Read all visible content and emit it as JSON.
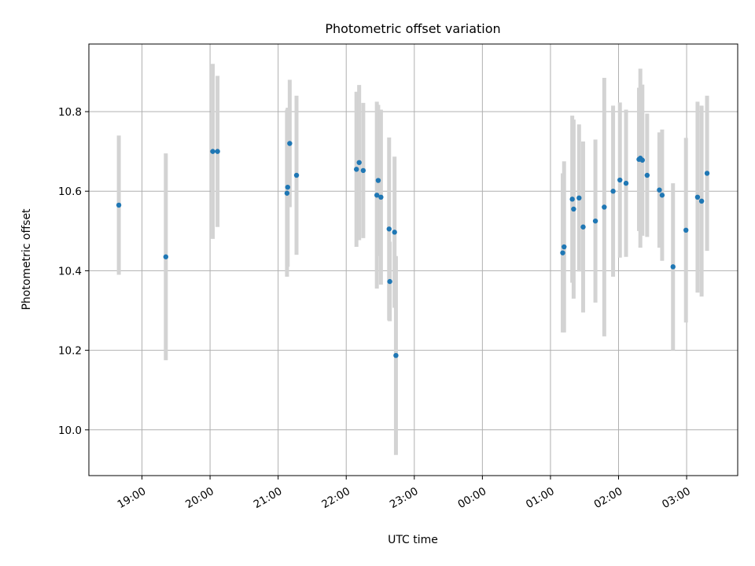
{
  "chart_data": {
    "type": "scatter",
    "title": "Photometric offset variation",
    "xlabel": "UTC time",
    "ylabel": "Photometric offset",
    "x_ticks": [
      "19:00",
      "20:00",
      "21:00",
      "22:00",
      "23:00",
      "00:00",
      "01:00",
      "02:00",
      "03:00"
    ],
    "x_tick_hours": [
      19,
      20,
      21,
      22,
      23,
      24,
      25,
      26,
      27
    ],
    "xlim": [
      18.22,
      27.75
    ],
    "y_ticks": [
      "10.0",
      "10.2",
      "10.4",
      "10.6",
      "10.8"
    ],
    "y_tick_values": [
      10.0,
      10.2,
      10.4,
      10.6,
      10.8
    ],
    "ylim": [
      9.885,
      10.97
    ],
    "grid": true,
    "colors": {
      "marker": "#1f77b4",
      "errorbar": "#d3d3d3",
      "grid": "#b0b0b0"
    },
    "points": [
      {
        "t": 18.66,
        "y": 10.565,
        "err": 0.175
      },
      {
        "t": 19.35,
        "y": 10.435,
        "err": 0.26
      },
      {
        "t": 20.04,
        "y": 10.7,
        "err": 0.22
      },
      {
        "t": 20.11,
        "y": 10.7,
        "err": 0.19
      },
      {
        "t": 21.13,
        "y": 10.595,
        "err": 0.21
      },
      {
        "t": 21.14,
        "y": 10.61,
        "err": 0.2
      },
      {
        "t": 21.17,
        "y": 10.72,
        "err": 0.16
      },
      {
        "t": 21.27,
        "y": 10.64,
        "err": 0.2
      },
      {
        "t": 22.15,
        "y": 10.655,
        "err": 0.195
      },
      {
        "t": 22.19,
        "y": 10.672,
        "err": 0.195
      },
      {
        "t": 22.25,
        "y": 10.652,
        "err": 0.17
      },
      {
        "t": 22.45,
        "y": 10.59,
        "err": 0.235
      },
      {
        "t": 22.47,
        "y": 10.627,
        "err": 0.19
      },
      {
        "t": 22.51,
        "y": 10.585,
        "err": 0.22
      },
      {
        "t": 22.63,
        "y": 10.505,
        "err": 0.23
      },
      {
        "t": 22.64,
        "y": 10.373,
        "err": 0.1
      },
      {
        "t": 22.71,
        "y": 10.497,
        "err": 0.19
      },
      {
        "t": 22.73,
        "y": 10.187,
        "err": 0.25
      },
      {
        "t": 25.18,
        "y": 10.445,
        "err": 0.2
      },
      {
        "t": 25.2,
        "y": 10.46,
        "err": 0.215
      },
      {
        "t": 25.32,
        "y": 10.58,
        "err": 0.21
      },
      {
        "t": 25.34,
        "y": 10.555,
        "err": 0.225
      },
      {
        "t": 25.42,
        "y": 10.583,
        "err": 0.185
      },
      {
        "t": 25.48,
        "y": 10.51,
        "err": 0.215
      },
      {
        "t": 25.66,
        "y": 10.525,
        "err": 0.205
      },
      {
        "t": 25.79,
        "y": 10.56,
        "err": 0.325
      },
      {
        "t": 25.92,
        "y": 10.6,
        "err": 0.215
      },
      {
        "t": 26.02,
        "y": 10.628,
        "err": 0.195
      },
      {
        "t": 26.11,
        "y": 10.62,
        "err": 0.185
      },
      {
        "t": 26.3,
        "y": 10.68,
        "err": 0.18
      },
      {
        "t": 26.32,
        "y": 10.683,
        "err": 0.225
      },
      {
        "t": 26.35,
        "y": 10.678,
        "err": 0.19
      },
      {
        "t": 26.42,
        "y": 10.64,
        "err": 0.155
      },
      {
        "t": 26.6,
        "y": 10.603,
        "err": 0.145
      },
      {
        "t": 26.64,
        "y": 10.59,
        "err": 0.165
      },
      {
        "t": 26.8,
        "y": 10.41,
        "err": 0.21
      },
      {
        "t": 26.99,
        "y": 10.502,
        "err": 0.232
      },
      {
        "t": 27.16,
        "y": 10.585,
        "err": 0.24
      },
      {
        "t": 27.22,
        "y": 10.575,
        "err": 0.24
      },
      {
        "t": 27.3,
        "y": 10.645,
        "err": 0.195
      }
    ]
  }
}
